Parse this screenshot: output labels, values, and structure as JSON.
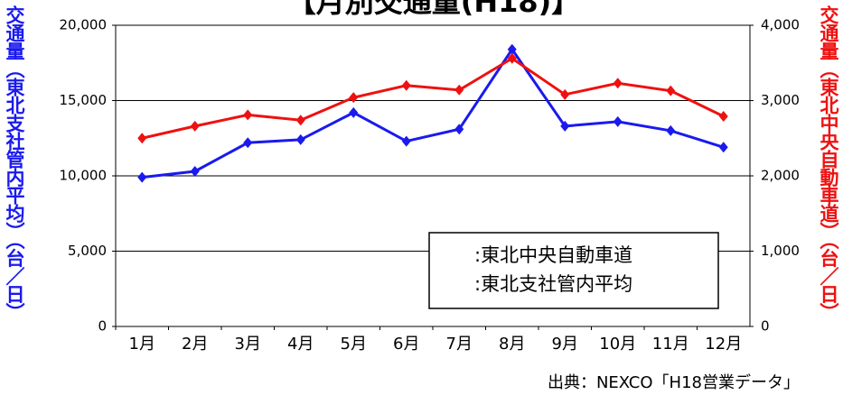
{
  "chart_data": {
    "type": "line",
    "title": "【月別交通量(H18)】",
    "ylabel": "交通量（東北支社管内平均）（台／日）",
    "y2label": "交通量（東北中央自動車道）（台／日）",
    "source": "出典：NEXCO「H18営業データ」",
    "categories": [
      "1月",
      "2月",
      "3月",
      "4月",
      "5月",
      "6月",
      "7月",
      "8月",
      "9月",
      "10月",
      "11月",
      "12月"
    ],
    "series": [
      {
        "name": ":東北中央自動車道",
        "color": "#ee1111",
        "axis": "y2",
        "values": [
          2500,
          2660,
          2810,
          2740,
          3040,
          3200,
          3140,
          3560,
          3080,
          3230,
          3130,
          2790
        ]
      },
      {
        "name": ":東北支社管内平均",
        "color": "#1a1aee",
        "values": [
          9900,
          10300,
          12200,
          12400,
          14200,
          12300,
          13100,
          18400,
          13300,
          13600,
          13000,
          11900
        ]
      }
    ],
    "ylim": [
      0,
      20000
    ],
    "yticks": [
      0,
      {
        "value": 5000,
        "label": "5,000"
      },
      {
        "value": 10000,
        "label": "10,000"
      },
      {
        "value": 15000,
        "label": "15,000"
      },
      {
        "value": 20000,
        "label": "20,000"
      }
    ],
    "y2lim": [
      0,
      4000
    ],
    "y2ticks": [
      0,
      {
        "value": 1000,
        "label": "1,000"
      },
      {
        "value": 2000,
        "label": "2,000"
      },
      {
        "value": 3000,
        "label": "3,000"
      },
      {
        "value": 4000,
        "label": "4,000"
      }
    ],
    "grid": true
  }
}
